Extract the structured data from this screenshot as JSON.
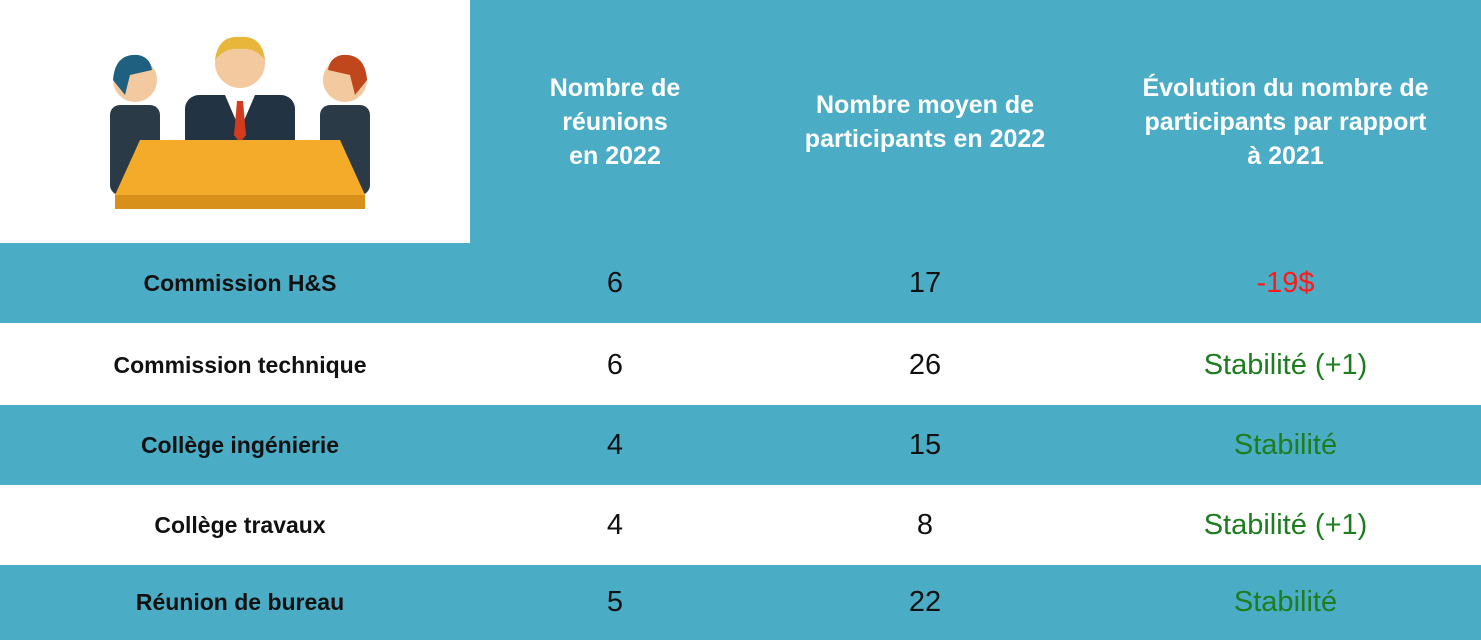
{
  "header": {
    "columns": [
      [
        "Nombre de",
        "réunions",
        "en 2022"
      ],
      [
        "Nombre moyen de",
        "participants en 2022"
      ],
      [
        "Évolution du nombre de",
        "participants par rapport",
        "à 2021"
      ]
    ]
  },
  "table": {
    "rows": [
      [
        "Commission H&S",
        6,
        17,
        "-19$"
      ],
      [
        "Commission technique",
        6,
        26,
        "Stabilité (+1)"
      ],
      [
        "Collège ingénierie",
        4,
        15,
        "Stabilité"
      ],
      [
        "Collège travaux",
        4,
        8,
        "Stabilité (+1)"
      ],
      [
        "Réunion de bureau",
        5,
        22,
        "Stabilité"
      ]
    ]
  }
}
